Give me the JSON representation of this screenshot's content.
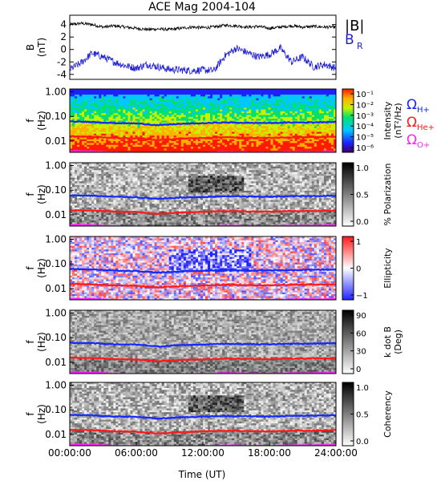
{
  "chart_data": {
    "type": "line",
    "title": "ACE Mag 2004-104",
    "xlabel": "Time (UT)",
    "x_tick_labels": [
      "00:00:00",
      "06:00:00",
      "12:00:00",
      "18:00:00",
      "24:00:00"
    ],
    "x_range_hours": [
      0,
      24
    ],
    "colors": {
      "B_total": "#000000",
      "B_R": "#1f1fd6",
      "proton_gyro": "#1428ff",
      "helium_gyro": "#ff1a1a",
      "oxygen_gyro": "#ff22ff"
    },
    "magnitude_panel": {
      "ylabel": "B",
      "yunit": "(nT)",
      "ylim": [
        -4.8,
        5.5
      ],
      "yticks": [
        4,
        2,
        0,
        -2,
        -4
      ],
      "series": [
        {
          "name": "|B|",
          "x": [
            0,
            1,
            2,
            3,
            4,
            5,
            6,
            7,
            8,
            9,
            10,
            11,
            12,
            13,
            14,
            15,
            16,
            17,
            18,
            19,
            20,
            21,
            22,
            23,
            24
          ],
          "values": [
            4.0,
            4.2,
            4.0,
            3.6,
            3.8,
            3.6,
            3.4,
            3.2,
            3.3,
            3.2,
            3.4,
            3.6,
            3.5,
            3.6,
            3.9,
            3.8,
            3.6,
            3.7,
            3.4,
            3.6,
            3.8,
            3.6,
            3.7,
            3.6,
            3.6
          ]
        },
        {
          "name": "B",
          "subscript": "R",
          "x": [
            0,
            1,
            2,
            3,
            4,
            5,
            6,
            7,
            8,
            9,
            10,
            11,
            12,
            13,
            14,
            15,
            16,
            17,
            18,
            19,
            20,
            21,
            22,
            23,
            24
          ],
          "values": [
            -3.2,
            -2.2,
            -0.6,
            -1.2,
            -2.0,
            -2.6,
            -3.0,
            -2.4,
            -2.8,
            -3.2,
            -3.3,
            -3.4,
            -3.3,
            -3.4,
            -1.0,
            0.2,
            -0.5,
            -1.2,
            -0.8,
            0.2,
            -2.0,
            -1.2,
            -2.8,
            -2.4,
            -3.0
          ]
        }
      ]
    },
    "spectral_panels": [
      {
        "name": "Intensity",
        "type": "heatmap",
        "ylabel": "f",
        "yunit": "(Hz)",
        "yticks": [
          "1.00",
          "0.10",
          "0.01"
        ],
        "colorbar_label": "Intensity",
        "colorbar_unit": "(nT²/Hz)",
        "colorbar_ticks": [
          "10⁻¹",
          "10⁻²",
          "10⁻³",
          "10⁻⁴",
          "10⁻⁵",
          "10⁻⁶"
        ],
        "colormap": "rainbow",
        "gyro_labels": [
          {
            "text": "Ω",
            "sub": "H+",
            "color": "#1428ff"
          },
          {
            "text": "Ω",
            "sub": "He+",
            "color": "#ff1a1a"
          },
          {
            "text": "Ω",
            "sub": "O+",
            "color": "#ff22ff"
          }
        ]
      },
      {
        "name": "% Polarization",
        "type": "heatmap",
        "ylabel": "f",
        "yunit": "(Hz)",
        "yticks": [
          "1.00",
          "0.10",
          "0.01"
        ],
        "colorbar_label": "% Polarization",
        "colorbar_unit": "",
        "colorbar_ticks": [
          "1.0",
          "0.5",
          "0.0"
        ],
        "colormap": "gray"
      },
      {
        "name": "Ellipticity",
        "type": "heatmap",
        "ylabel": "f",
        "yunit": "(Hz)",
        "yticks": [
          "1.00",
          "0.10",
          "0.01"
        ],
        "colorbar_label": "Ellipticity",
        "colorbar_unit": "",
        "colorbar_ticks": [
          "1",
          "0",
          "−1"
        ],
        "colormap": "bluered"
      },
      {
        "name": "k dot B",
        "type": "heatmap",
        "ylabel": "f",
        "yunit": "(Hz)",
        "yticks": [
          "1.00",
          "0.10",
          "0.01"
        ],
        "colorbar_label": "k dot B",
        "colorbar_unit": "(Deg)",
        "colorbar_ticks": [
          "90",
          "60",
          "30",
          "0"
        ],
        "colormap": "gray"
      },
      {
        "name": "Coherency",
        "type": "heatmap",
        "ylabel": "f",
        "yunit": "(Hz)",
        "yticks": [
          "1.00",
          "0.10",
          "0.01"
        ],
        "colorbar_label": "Coherency",
        "colorbar_unit": "",
        "colorbar_ticks": [
          "1.0",
          "0.5",
          "0.0"
        ],
        "colormap": "gray"
      }
    ],
    "gyrofrequency_lines": {
      "x": [
        0,
        2,
        4,
        6,
        8,
        10,
        12,
        14,
        16,
        18,
        20,
        22,
        24
      ],
      "H+": [
        0.062,
        0.06,
        0.054,
        0.052,
        0.044,
        0.05,
        0.053,
        0.057,
        0.055,
        0.054,
        0.057,
        0.058,
        0.06
      ],
      "He+": [
        0.0155,
        0.015,
        0.0135,
        0.013,
        0.011,
        0.0125,
        0.0133,
        0.0143,
        0.0138,
        0.0135,
        0.0143,
        0.0145,
        0.015
      ],
      "O+": [
        0.0039,
        0.0038,
        0.0034,
        0.0033,
        0.0028,
        0.0031,
        0.0033,
        0.0036,
        0.0035,
        0.0034,
        0.0036,
        0.0036,
        0.0038
      ]
    },
    "y_freq_range": [
      0.0035,
      1.3
    ]
  }
}
